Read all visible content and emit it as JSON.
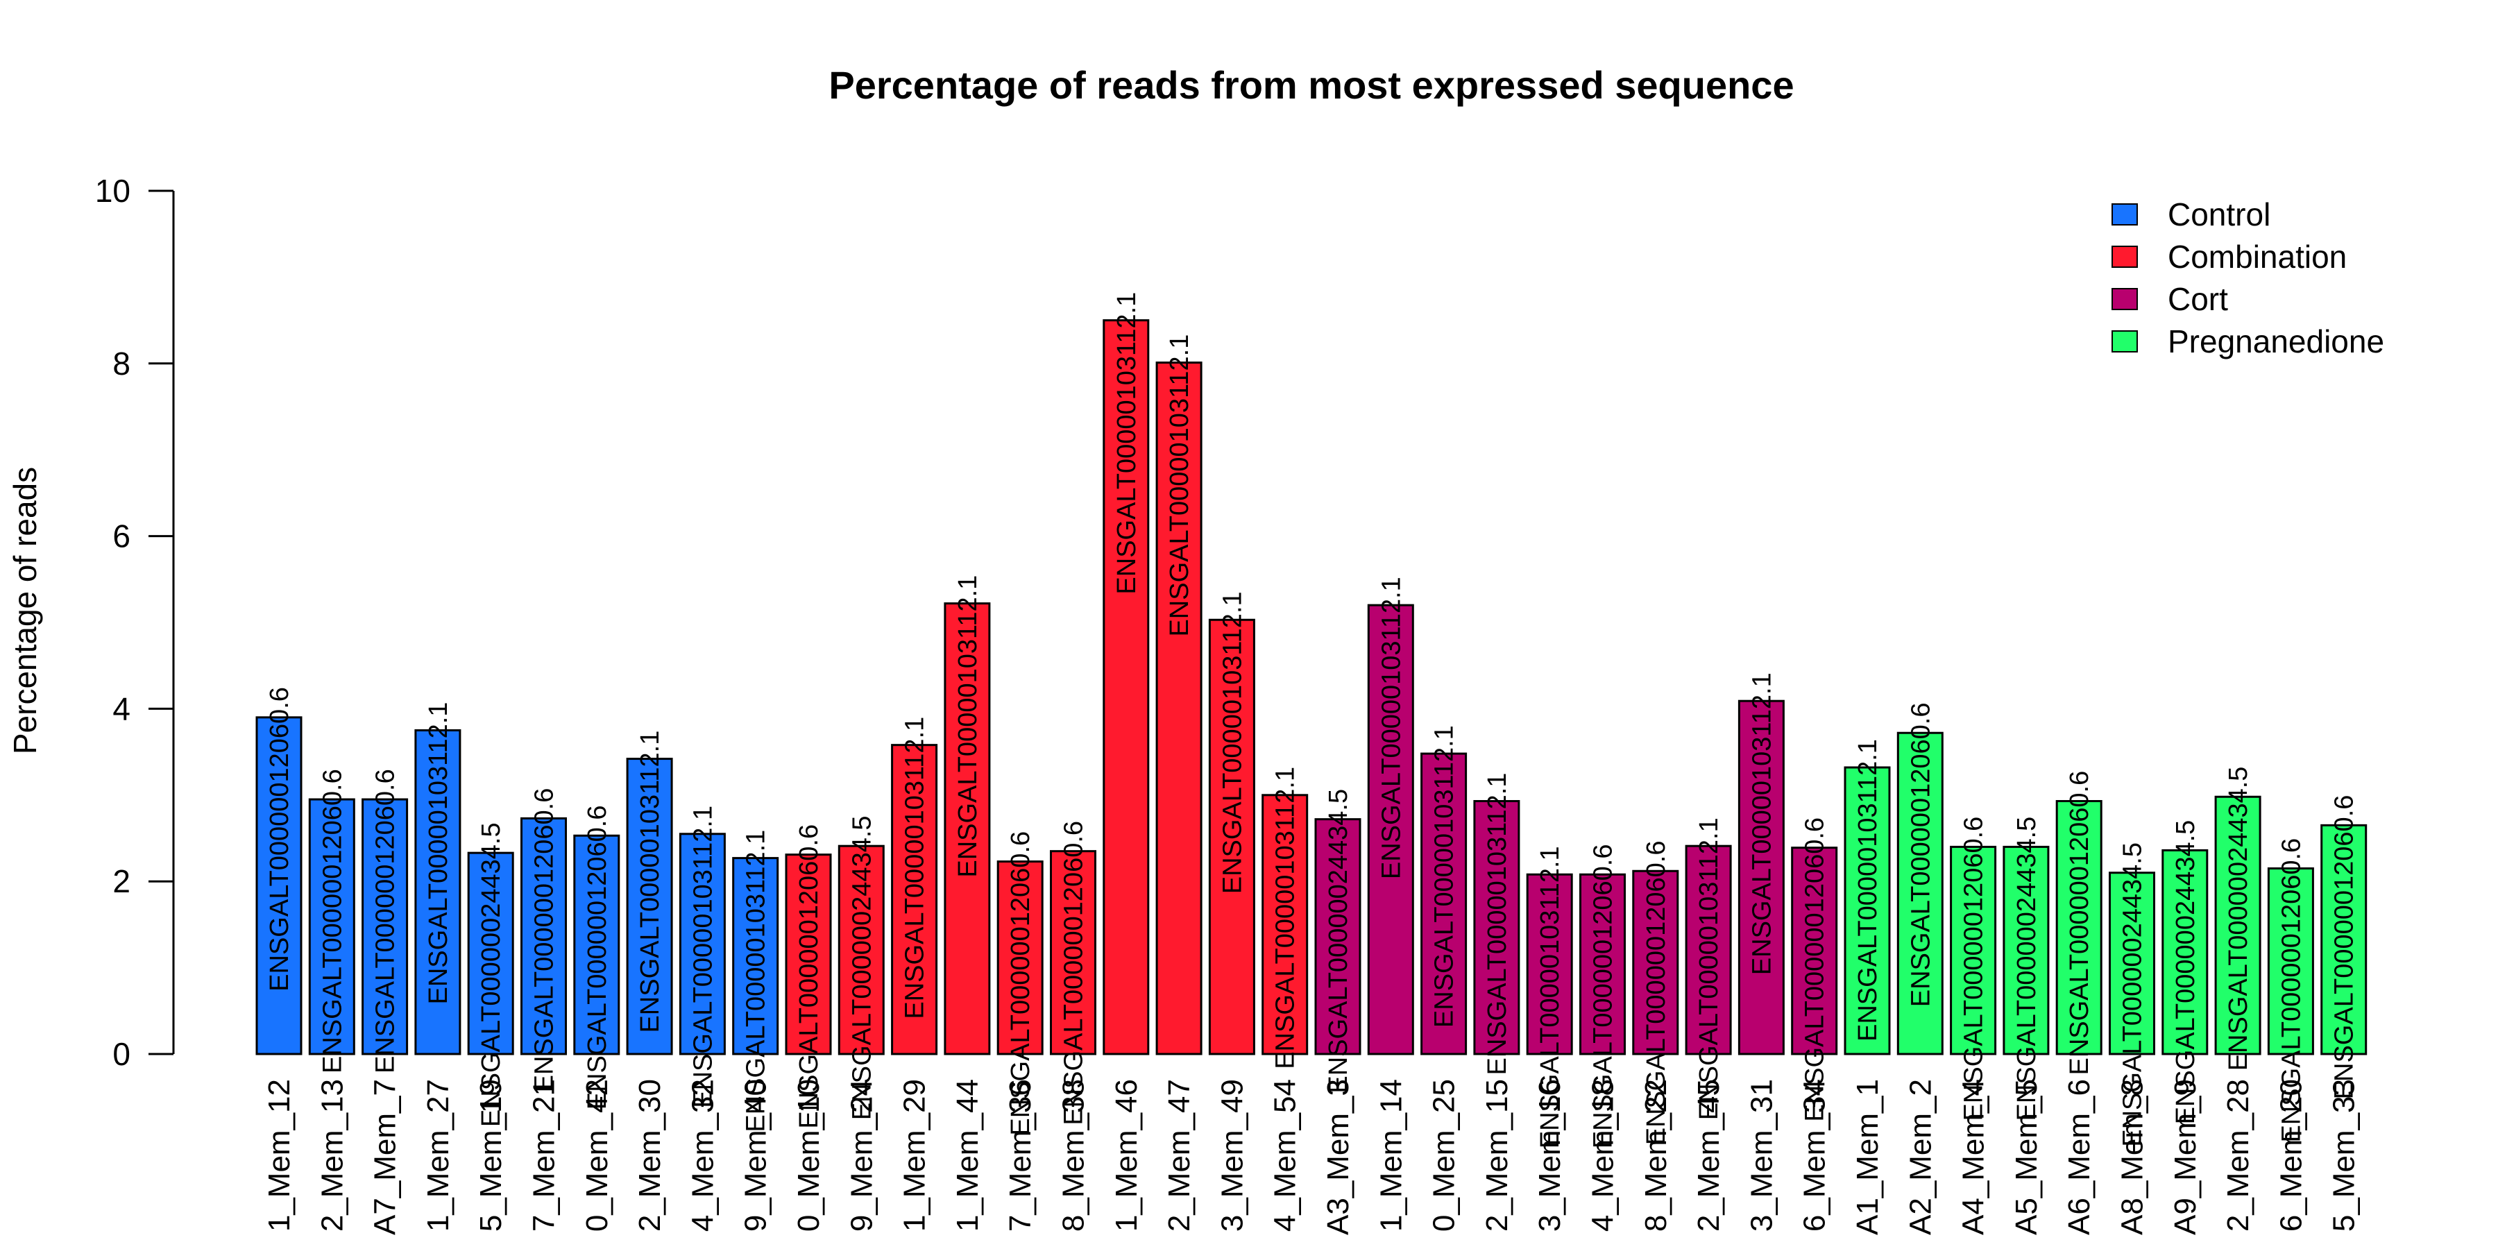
{
  "chart_data": {
    "type": "bar",
    "title": "Percentage of reads from most expressed sequence",
    "xlabel": "",
    "ylabel": "Percentage of reads",
    "ylim": [
      0,
      10
    ],
    "yticks": [
      0,
      2,
      4,
      6,
      8,
      10
    ],
    "grid": false,
    "legend_position": "top-right",
    "legend": [
      {
        "name": "Control",
        "color": "#1874FF"
      },
      {
        "name": "Combination",
        "color": "#FF1A2E"
      },
      {
        "name": "Cort",
        "color": "#B8006E"
      },
      {
        "name": "Pregnanedione",
        "color": "#21FF6A"
      }
    ],
    "categories": [
      "1_Mem_12",
      "2_Mem_13",
      "A7_Mem_7",
      "1_Mem_27",
      "5_Mem_19",
      "7_Mem_21",
      "0_Mem_42",
      "2_Mem_30",
      "4_Mem_32",
      "9_Mem_40",
      "0_Mem_10",
      "9_Mem_24",
      "1_Mem_29",
      "1_Mem_44",
      "7_Mem_36",
      "8_Mem_38",
      "1_Mem_46",
      "2_Mem_47",
      "3_Mem_49",
      "4_Mem_54",
      "A3_Mem_3",
      "1_Mem_14",
      "0_Mem_25",
      "2_Mem_15",
      "3_Mem_16",
      "4_Mem_18",
      "8_Mem_22",
      "2_Mem_45",
      "3_Mem_31",
      "6_Mem_34",
      "A1_Mem_1",
      "A2_Mem_2",
      "A4_Mem_4",
      "A5_Mem_5",
      "A6_Mem_6",
      "A8_Mem_8",
      "A9_Mem_9",
      "2_Mem_28",
      "6_Mem_20",
      "5_Mem_33"
    ],
    "groups": [
      "Control",
      "Control",
      "Control",
      "Control",
      "Control",
      "Control",
      "Control",
      "Control",
      "Control",
      "Control",
      "Combination",
      "Combination",
      "Combination",
      "Combination",
      "Combination",
      "Combination",
      "Combination",
      "Combination",
      "Combination",
      "Combination",
      "Cort",
      "Cort",
      "Cort",
      "Cort",
      "Cort",
      "Cort",
      "Cort",
      "Cort",
      "Cort",
      "Cort",
      "Pregnanedione",
      "Pregnanedione",
      "Pregnanedione",
      "Pregnanedione",
      "Pregnanedione",
      "Pregnanedione",
      "Pregnanedione",
      "Pregnanedione",
      "Pregnanedione",
      "Pregnanedione"
    ],
    "values": [
      3.9,
      2.95,
      2.95,
      3.75,
      2.33,
      2.73,
      2.53,
      3.42,
      2.55,
      2.27,
      2.31,
      2.41,
      3.58,
      5.22,
      2.23,
      2.35,
      8.5,
      8.01,
      5.03,
      3.0,
      2.72,
      5.2,
      3.48,
      2.93,
      2.08,
      2.08,
      2.12,
      2.41,
      4.09,
      2.39,
      3.32,
      3.72,
      2.4,
      2.4,
      2.93,
      2.1,
      2.36,
      2.98,
      2.15,
      2.65
    ],
    "bar_labels": [
      "ENSGALT00000012060.6",
      "ENSGALT00000012060.6",
      "ENSGALT00000012060.6",
      "ENSGALT00000103112.1",
      "ENSGALT00000024434.5",
      "ENSGALT00000012060.6",
      "ENSGALT00000012060.6",
      "ENSGALT00000103112.1",
      "ENSGALT00000103112.1",
      "ENSGALT00000103112.1",
      "ENSGALT00000012060.6",
      "ENSGALT00000024434.5",
      "ENSGALT00000103112.1",
      "ENSGALT00000103112.1",
      "ENSGALT00000012060.6",
      "ENSGALT00000012060.6",
      "ENSGALT00000103112.1",
      "ENSGALT00000103112.1",
      "ENSGALT00000103112.1",
      "ENSGALT00000103112.1",
      "ENSGALT00000024434.5",
      "ENSGALT00000103112.1",
      "ENSGALT00000103112.1",
      "ENSGALT00000103112.1",
      "ENSGALT00000103112.1",
      "ENSGALT00000012060.6",
      "ENSGALT00000012060.6",
      "ENSGALT00000103112.1",
      "ENSGALT00000103112.1",
      "ENSGALT00000012060.6",
      "ENSGALT00000103112.1",
      "ENSGALT00000012060.6",
      "ENSGALT00000012060.6",
      "ENSGALT00000024434.5",
      "ENSGALT00000012060.6",
      "ENSGALT00000024434.5",
      "ENSGALT00000024434.5",
      "ENSGALT00000024434.5",
      "ENSGALT00000012060.6",
      "ENSGALT00000012060.6"
    ]
  }
}
